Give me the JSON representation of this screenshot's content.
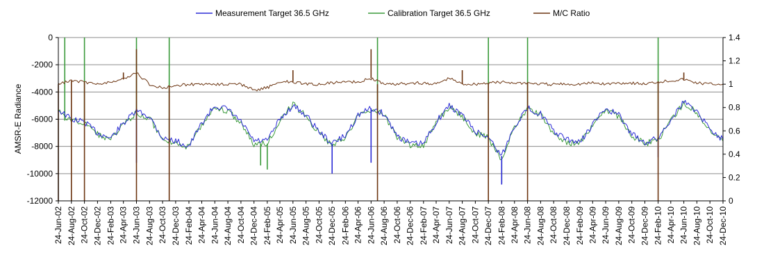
{
  "chart_data": {
    "type": "line",
    "ylabel_left": "AMSR-E Radiance",
    "ylim_left": [
      -12000,
      0
    ],
    "yticks_left": [
      0,
      -2000,
      -4000,
      -6000,
      -8000,
      -10000,
      -12000
    ],
    "ylim_right": [
      0,
      1.4
    ],
    "yticks_right": [
      1.4,
      1.2,
      1,
      0.8,
      0.6,
      0.4,
      0.2,
      0
    ],
    "grid": true,
    "legend_position": "top",
    "x_tick_labels": [
      "24-Jun-02",
      "24-Aug-02",
      "24-Oct-02",
      "24-Dec-02",
      "24-Feb-03",
      "24-Apr-03",
      "24-Jun-03",
      "24-Aug-03",
      "24-Oct-03",
      "24-Dec-03",
      "24-Feb-04",
      "24-Apr-04",
      "24-Jun-04",
      "24-Aug-04",
      "24-Oct-04",
      "24-Dec-04",
      "24-Feb-05",
      "24-Apr-05",
      "24-Jun-05",
      "24-Aug-05",
      "24-Oct-05",
      "24-Dec-05",
      "24-Feb-06",
      "24-Apr-06",
      "24-Jun-06",
      "24-Aug-06",
      "24-Oct-06",
      "24-Dec-06",
      "24-Feb-07",
      "24-Apr-07",
      "24-Jun-07",
      "24-Aug-07",
      "24-Oct-07",
      "24-Dec-07",
      "24-Feb-08",
      "24-Apr-08",
      "24-Jun-08",
      "24-Aug-08",
      "24-Oct-08",
      "24-Dec-08",
      "24-Feb-09",
      "24-Apr-09",
      "24-Jun-09",
      "24-Aug-09",
      "24-Oct-09",
      "24-Dec-09",
      "24-Feb-10",
      "24-Apr-10",
      "24-Jun-10",
      "24-Aug-10",
      "24-Oct-10",
      "24-Dec-10"
    ],
    "series": [
      {
        "name": "Measurement Target 36.5 GHz",
        "axis": "left",
        "color": "#2b2bd6",
        "x": [
          "24-Jun-02",
          "24-Aug-02",
          "24-Oct-02",
          "24-Dec-02",
          "24-Feb-03",
          "24-Apr-03",
          "24-Jun-03",
          "24-Aug-03",
          "24-Oct-03",
          "24-Dec-03",
          "24-Feb-04",
          "24-Apr-04",
          "24-Jun-04",
          "24-Aug-04",
          "24-Oct-04",
          "24-Dec-04",
          "24-Feb-05",
          "24-Apr-05",
          "24-Jun-05",
          "24-Aug-05",
          "24-Oct-05",
          "24-Dec-05",
          "24-Feb-06",
          "24-Apr-06",
          "24-Jun-06",
          "24-Aug-06",
          "24-Oct-06",
          "24-Dec-06",
          "24-Feb-07",
          "24-Apr-07",
          "24-Jun-07",
          "24-Aug-07",
          "24-Oct-07",
          "24-Dec-07",
          "24-Feb-08",
          "24-Apr-08",
          "24-Jun-08",
          "24-Aug-08",
          "24-Oct-08",
          "24-Dec-08",
          "24-Feb-09",
          "24-Apr-09",
          "24-Jun-09",
          "24-Aug-09",
          "24-Oct-09",
          "24-Dec-09",
          "24-Feb-10",
          "24-Apr-10",
          "24-Jun-10",
          "24-Aug-10",
          "24-Oct-10",
          "24-Dec-10"
        ],
        "values": [
          -5300,
          -6000,
          -6200,
          -7000,
          -7400,
          -6300,
          -5400,
          -5800,
          -7400,
          -7600,
          -8000,
          -6300,
          -5000,
          -5300,
          -6200,
          -7600,
          -7600,
          -6000,
          -5000,
          -5700,
          -6900,
          -7800,
          -7200,
          -5700,
          -5200,
          -5600,
          -7200,
          -7800,
          -7800,
          -6200,
          -5000,
          -5700,
          -6900,
          -7300,
          -8700,
          -6500,
          -5200,
          -5600,
          -6900,
          -7500,
          -7700,
          -6400,
          -5200,
          -5700,
          -7100,
          -7700,
          -7400,
          -6000,
          -4700,
          -5400,
          -6700,
          -7500
        ],
        "dips": [
          {
            "x": "24-Jun-03",
            "value": -9200
          },
          {
            "x": "24-Dec-05",
            "value": -10000
          },
          {
            "x": "24-Jun-06",
            "value": -9200
          },
          {
            "x": "24-Feb-08",
            "value": -10800
          },
          {
            "x": "24-Feb-10",
            "value": -8800
          }
        ]
      },
      {
        "name": "Calibration Target 36.5 GHz",
        "axis": "left",
        "color": "#3a9a3a",
        "x": [
          "24-Jun-02",
          "24-Aug-02",
          "24-Oct-02",
          "24-Dec-02",
          "24-Feb-03",
          "24-Apr-03",
          "24-Jun-03",
          "24-Aug-03",
          "24-Oct-03",
          "24-Dec-03",
          "24-Feb-04",
          "24-Apr-04",
          "24-Jun-04",
          "24-Aug-04",
          "24-Oct-04",
          "24-Dec-04",
          "24-Feb-05",
          "24-Apr-05",
          "24-Jun-05",
          "24-Aug-05",
          "24-Oct-05",
          "24-Dec-05",
          "24-Feb-06",
          "24-Apr-06",
          "24-Jun-06",
          "24-Aug-06",
          "24-Oct-06",
          "24-Dec-06",
          "24-Feb-07",
          "24-Apr-07",
          "24-Jun-07",
          "24-Aug-07",
          "24-Oct-07",
          "24-Dec-07",
          "24-Feb-08",
          "24-Apr-08",
          "24-Jun-08",
          "24-Aug-08",
          "24-Oct-08",
          "24-Dec-08",
          "24-Feb-09",
          "24-Apr-09",
          "24-Jun-09",
          "24-Aug-09",
          "24-Oct-09",
          "24-Dec-09",
          "24-Feb-10",
          "24-Apr-10",
          "24-Jun-10",
          "24-Aug-10",
          "24-Oct-10",
          "24-Dec-10"
        ],
        "values": [
          -5400,
          -6100,
          -6300,
          -7100,
          -7500,
          -6400,
          -5500,
          -5900,
          -7500,
          -7700,
          -8100,
          -6400,
          -5100,
          -5400,
          -6300,
          -7800,
          -7800,
          -6100,
          -4900,
          -5800,
          -7000,
          -7900,
          -7300,
          -5800,
          -5300,
          -5700,
          -7300,
          -7900,
          -7900,
          -6300,
          -5100,
          -5800,
          -7000,
          -7400,
          -9000,
          -6600,
          -5300,
          -5700,
          -7000,
          -7700,
          -7800,
          -6500,
          -5300,
          -5800,
          -7200,
          -7800,
          -7500,
          -6100,
          -4800,
          -5500,
          -6800,
          -7600
        ],
        "dips": [
          {
            "x": "24-Jan-05",
            "value": -9400
          },
          {
            "x": "24-Feb-05",
            "value": -9700
          },
          {
            "x": "24-Feb-08",
            "value": -10700
          }
        ],
        "spikes": [
          {
            "x": "24-Jul-02",
            "value": 0
          },
          {
            "x": "24-Oct-02",
            "value": 0
          },
          {
            "x": "24-Jun-03",
            "value": 0
          },
          {
            "x": "24-Nov-03",
            "value": 0
          },
          {
            "x": "24-Jul-06",
            "value": 0
          },
          {
            "x": "24-Dec-07",
            "value": 0
          },
          {
            "x": "24-Jun-08",
            "value": 0
          },
          {
            "x": "24-Feb-10",
            "value": 0
          }
        ]
      },
      {
        "name": "M/C Ratio",
        "axis": "right",
        "color": "#6b3410",
        "x": [
          "24-Jun-02",
          "24-Aug-02",
          "24-Oct-02",
          "24-Dec-02",
          "24-Feb-03",
          "24-Apr-03",
          "24-Jun-03",
          "24-Aug-03",
          "24-Oct-03",
          "24-Dec-03",
          "24-Feb-04",
          "24-Apr-04",
          "24-Jun-04",
          "24-Aug-04",
          "24-Oct-04",
          "24-Dec-04",
          "24-Feb-05",
          "24-Apr-05",
          "24-Jun-05",
          "24-Aug-05",
          "24-Oct-05",
          "24-Dec-05",
          "24-Feb-06",
          "24-Apr-06",
          "24-Jun-06",
          "24-Aug-06",
          "24-Oct-06",
          "24-Dec-06",
          "24-Feb-07",
          "24-Apr-07",
          "24-Jun-07",
          "24-Aug-07",
          "24-Oct-07",
          "24-Dec-07",
          "24-Feb-08",
          "24-Apr-08",
          "24-Jun-08",
          "24-Aug-08",
          "24-Oct-08",
          "24-Dec-08",
          "24-Feb-09",
          "24-Apr-09",
          "24-Jun-09",
          "24-Aug-09",
          "24-Oct-09",
          "24-Dec-09",
          "24-Feb-10",
          "24-Apr-10",
          "24-Jun-10",
          "24-Aug-10",
          "24-Oct-10",
          "24-Dec-10"
        ],
        "values": [
          1.0,
          1.03,
          1.02,
          1.0,
          1.02,
          1.04,
          1.1,
          1.0,
          0.97,
          0.99,
          1.0,
          1.0,
          1.0,
          1.0,
          1.0,
          0.95,
          0.97,
          1.02,
          1.02,
          1.0,
          1.0,
          1.01,
          1.02,
          1.02,
          1.05,
          1.0,
          1.0,
          1.01,
          1.01,
          1.0,
          1.05,
          1.0,
          1.0,
          1.01,
          1.02,
          1.01,
          1.01,
          1.0,
          1.0,
          1.0,
          1.0,
          1.01,
          1.0,
          1.01,
          1.01,
          1.0,
          1.02,
          1.03,
          1.04,
          1.01,
          1.0,
          1.0
        ],
        "dips": [
          {
            "x": "24-Jun-02",
            "value": 0
          },
          {
            "x": "24-Aug-02",
            "value": 0
          },
          {
            "x": "24-Oct-02",
            "value": 0
          },
          {
            "x": "24-Jun-03",
            "value": 0
          },
          {
            "x": "24-Nov-03",
            "value": 0
          },
          {
            "x": "24-Jul-06",
            "value": 0
          },
          {
            "x": "24-Dec-07",
            "value": 0
          },
          {
            "x": "24-Jun-08",
            "value": 0
          },
          {
            "x": "24-Feb-10",
            "value": 0
          }
        ],
        "spikes": [
          {
            "x": "24-Jun-03",
            "value": 1.3
          },
          {
            "x": "24-Jun-06",
            "value": 1.3
          },
          {
            "x": "24-Jun-05",
            "value": 1.12
          },
          {
            "x": "24-Aug-07",
            "value": 1.12
          },
          {
            "x": "24-Apr-03",
            "value": 1.1
          },
          {
            "x": "24-Jun-10",
            "value": 1.1
          }
        ]
      }
    ]
  }
}
